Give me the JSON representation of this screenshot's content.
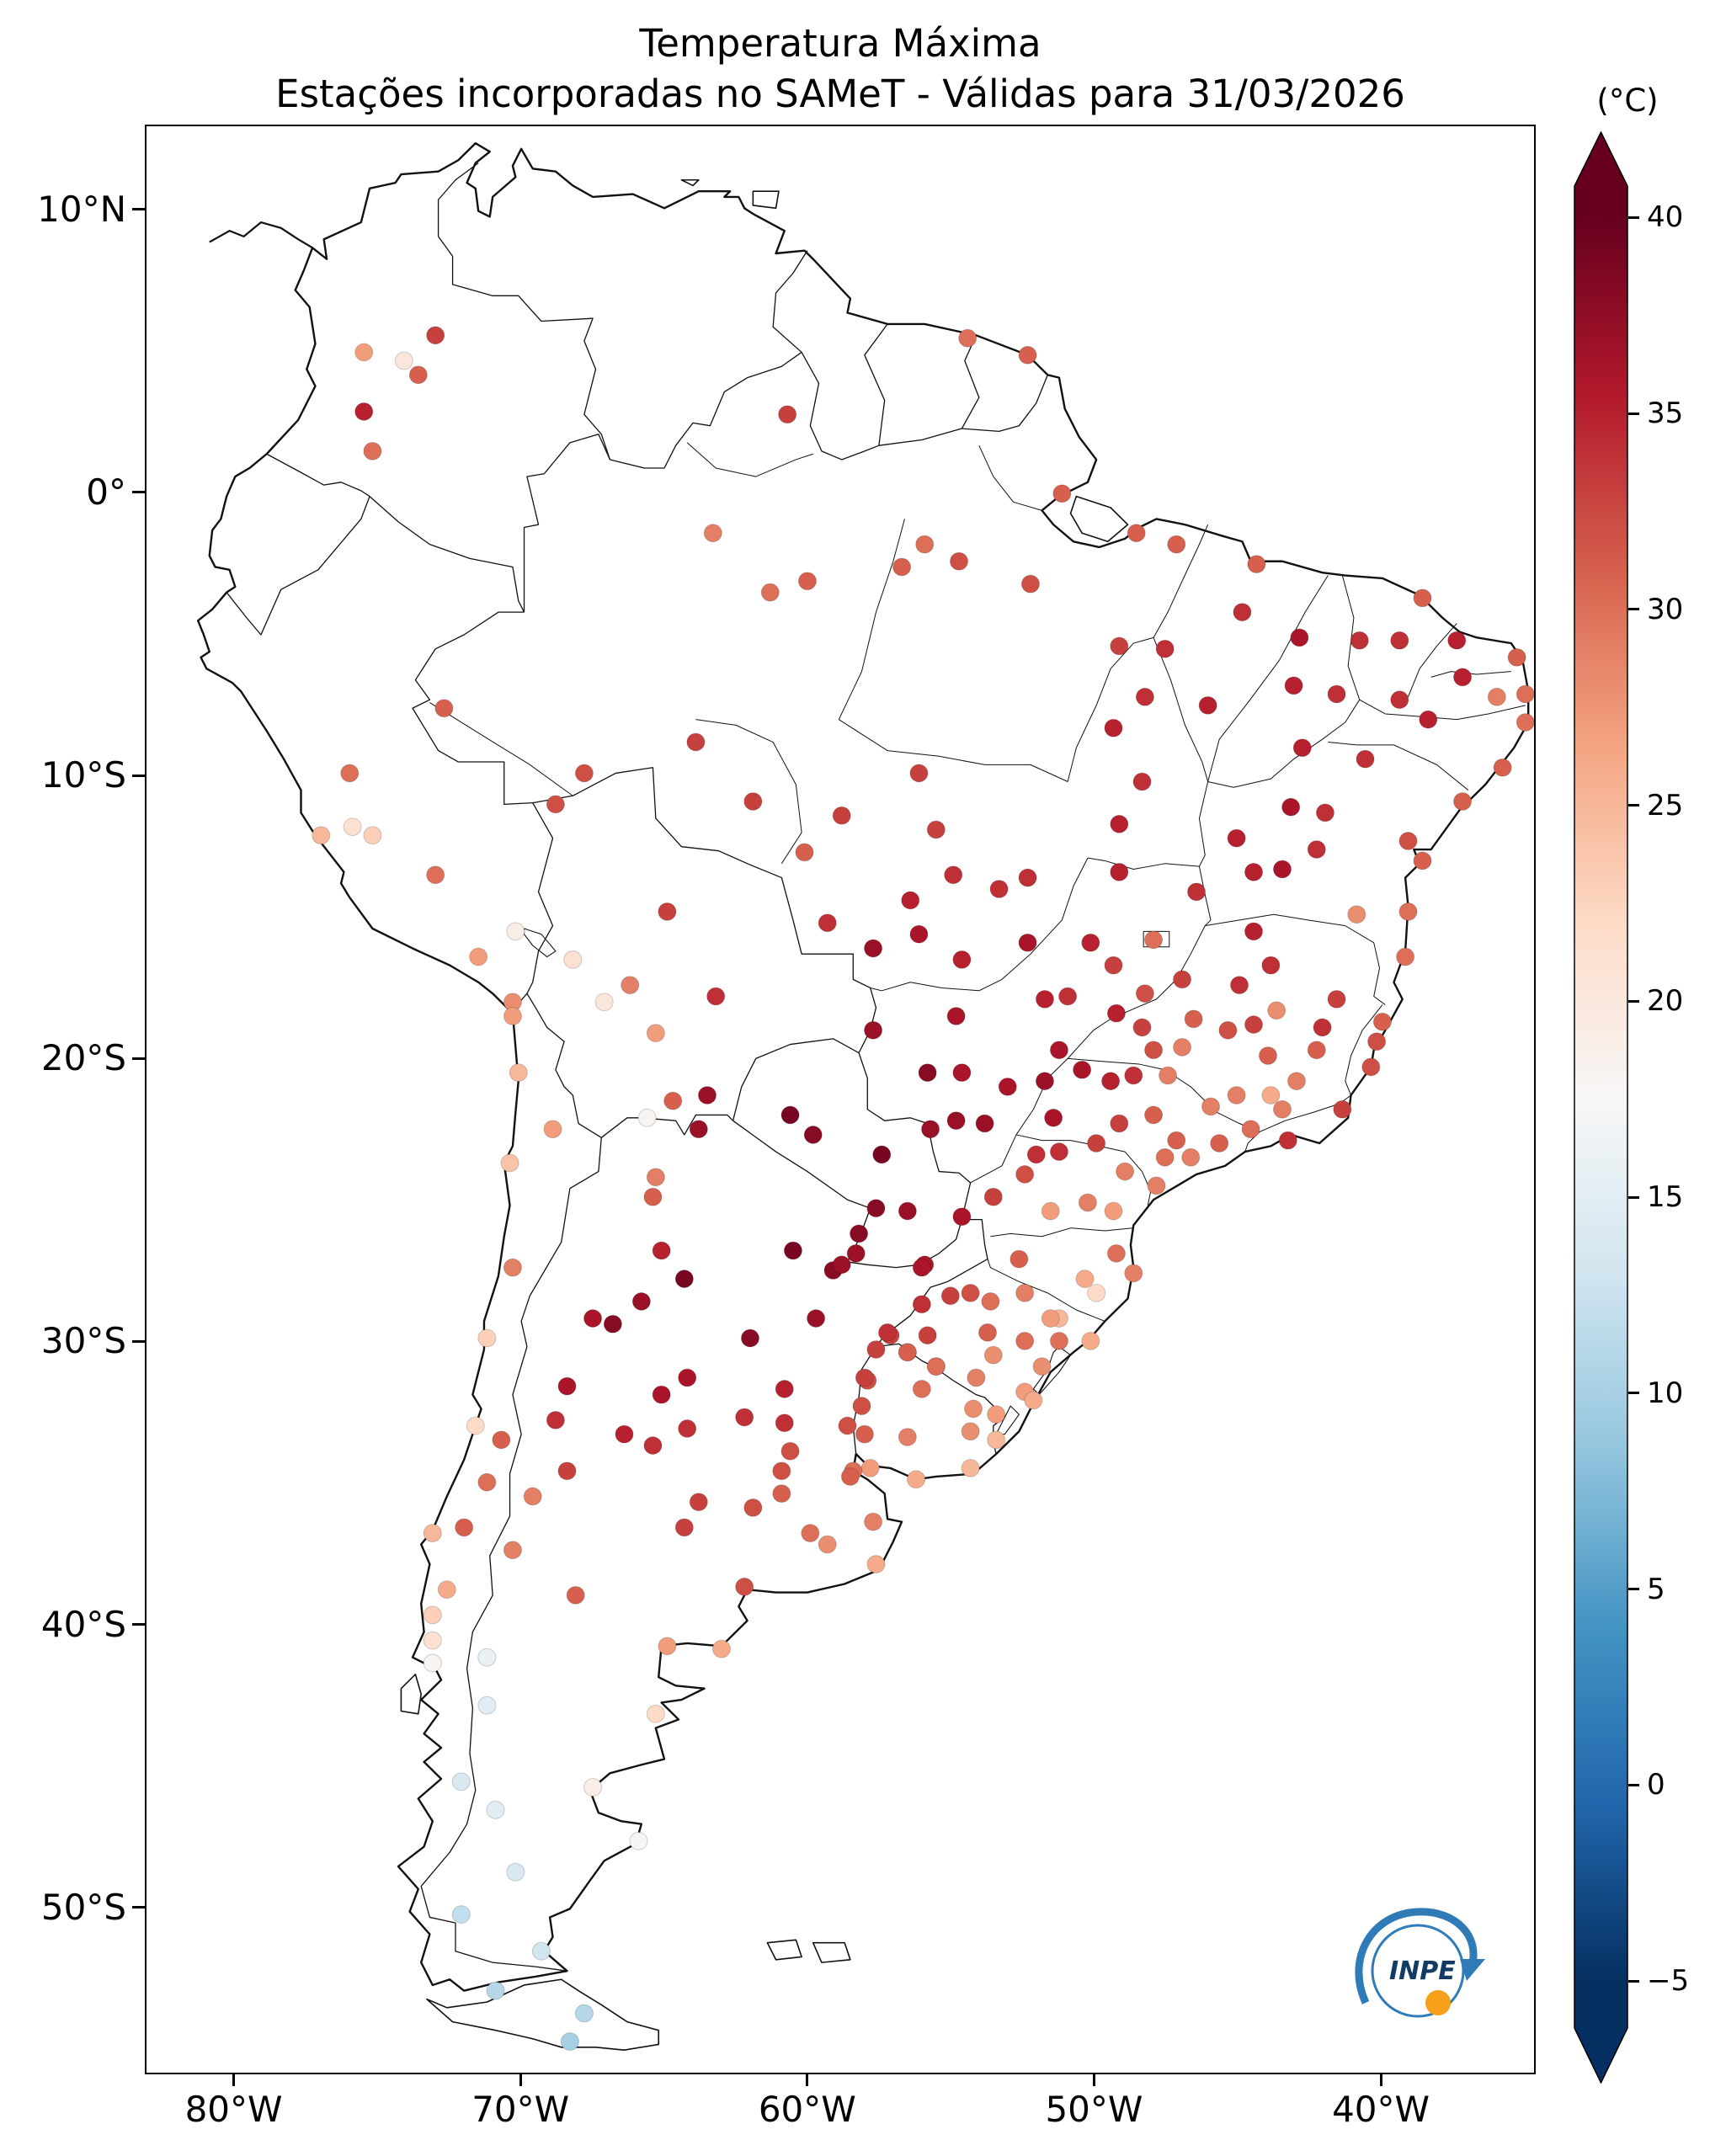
{
  "title": {
    "line1": "Temperatura Máxima",
    "line2": "Estações incorporadas no SAMeT - Válidas para 31/03/2026"
  },
  "colorbar": {
    "unit_label": "(°C)",
    "tick_labels": [
      "40",
      "35",
      "30",
      "25",
      "20",
      "15",
      "10",
      "5",
      "0",
      "−5"
    ],
    "tick_values": [
      40,
      35,
      30,
      25,
      20,
      15,
      10,
      5,
      0,
      -5
    ],
    "vmin": -5,
    "vmax": 40,
    "colormap": "RdBu_r",
    "extend": "both",
    "anchors": [
      "#053061",
      "#2166ac",
      "#4393c3",
      "#92c5de",
      "#d1e5f0",
      "#f7f7f7",
      "#fddbc7",
      "#f4a582",
      "#d6604d",
      "#b2182b",
      "#67001f"
    ]
  },
  "axes": {
    "x_tick_labels": [
      "80°W",
      "70°W",
      "60°W",
      "50°W",
      "40°W"
    ],
    "x_tick_values": [
      -80,
      -70,
      -60,
      -50,
      -40
    ],
    "y_tick_labels": [
      "10°N",
      "0°",
      "10°S",
      "20°S",
      "30°S",
      "40°S",
      "50°S"
    ],
    "y_tick_values": [
      10,
      0,
      -10,
      -20,
      -30,
      -40,
      -50
    ],
    "lon_range": [
      -83.1,
      -34.6
    ],
    "lat_range": [
      -55.9,
      13.0
    ]
  },
  "logo": {
    "text": "INPE"
  },
  "chart_data": {
    "type": "scatter",
    "subtype": "geographic-station-map",
    "region": "South America",
    "title": "Temperatura Máxima",
    "subtitle": "Estações incorporadas no SAMeT - Válidas para 31/03/2026",
    "units": "°C",
    "colorbar_label": "(°C)",
    "value_range": [
      -5,
      40
    ],
    "colormap": "RdBu_r",
    "points_format": [
      "lon",
      "lat",
      "tmax_c"
    ],
    "points": [
      [
        -75.5,
        5.0,
        27
      ],
      [
        -74.1,
        4.7,
        20
      ],
      [
        -73.6,
        4.2,
        31
      ],
      [
        -73.0,
        5.6,
        33
      ],
      [
        -75.5,
        2.9,
        35
      ],
      [
        -75.2,
        1.5,
        30
      ],
      [
        -52.3,
        4.9,
        31
      ],
      [
        -54.4,
        5.5,
        30
      ],
      [
        -60.7,
        2.8,
        33
      ],
      [
        -63.3,
        -1.4,
        29
      ],
      [
        -60.0,
        -3.1,
        31
      ],
      [
        -61.3,
        -3.5,
        30
      ],
      [
        -56.7,
        -2.6,
        31
      ],
      [
        -54.7,
        -2.4,
        32
      ],
      [
        -52.2,
        -3.2,
        32
      ],
      [
        -48.5,
        -1.4,
        31
      ],
      [
        -47.1,
        -1.8,
        31
      ],
      [
        -51.1,
        0.0,
        31
      ],
      [
        -55.9,
        -1.8,
        30
      ],
      [
        -67.8,
        -9.9,
        32
      ],
      [
        -72.7,
        -7.6,
        31
      ],
      [
        -63.9,
        -8.8,
        33
      ],
      [
        -61.9,
        -10.9,
        33
      ],
      [
        -60.1,
        -12.7,
        31
      ],
      [
        -44.3,
        -2.5,
        31
      ],
      [
        -44.8,
        -4.2,
        34
      ],
      [
        -47.5,
        -5.5,
        34
      ],
      [
        -46.0,
        -7.5,
        35
      ],
      [
        -42.8,
        -5.1,
        36
      ],
      [
        -43.0,
        -6.8,
        35
      ],
      [
        -41.5,
        -7.1,
        34
      ],
      [
        -42.7,
        -9.0,
        35
      ],
      [
        -40.7,
        -5.2,
        34
      ],
      [
        -48.2,
        -7.2,
        34
      ],
      [
        -48.3,
        -10.2,
        34
      ],
      [
        -49.1,
        -11.7,
        35
      ],
      [
        -49.1,
        -5.4,
        33
      ],
      [
        -49.3,
        -8.3,
        35
      ],
      [
        -38.5,
        -3.7,
        31
      ],
      [
        -39.3,
        -5.2,
        34
      ],
      [
        -37.3,
        -5.2,
        35
      ],
      [
        -35.2,
        -5.8,
        31
      ],
      [
        -37.1,
        -6.5,
        35
      ],
      [
        -34.9,
        -7.1,
        30
      ],
      [
        -35.9,
        -7.2,
        29
      ],
      [
        -34.9,
        -8.1,
        30
      ],
      [
        -40.5,
        -9.4,
        34
      ],
      [
        -35.7,
        -9.7,
        31
      ],
      [
        -37.1,
        -10.9,
        31
      ],
      [
        -38.3,
        -8.0,
        35
      ],
      [
        -39.3,
        -7.3,
        34
      ],
      [
        -38.5,
        -13.0,
        31
      ],
      [
        -41.9,
        -11.3,
        34
      ],
      [
        -43.1,
        -11.1,
        36
      ],
      [
        -45.0,
        -12.2,
        35
      ],
      [
        -43.4,
        -13.3,
        36
      ],
      [
        -44.4,
        -13.4,
        35
      ],
      [
        -40.8,
        -14.9,
        28
      ],
      [
        -39.0,
        -14.8,
        30
      ],
      [
        -39.1,
        -16.4,
        30
      ],
      [
        -39.0,
        -12.3,
        32
      ],
      [
        -42.2,
        -12.6,
        34
      ],
      [
        -56.1,
        -15.6,
        36
      ],
      [
        -57.7,
        -16.1,
        37
      ],
      [
        -54.6,
        -16.5,
        35
      ],
      [
        -56.4,
        -14.4,
        35
      ],
      [
        -55.5,
        -11.9,
        33
      ],
      [
        -56.1,
        -9.9,
        33
      ],
      [
        -58.8,
        -11.4,
        33
      ],
      [
        -52.3,
        -13.6,
        34
      ],
      [
        -52.3,
        -15.9,
        36
      ],
      [
        -53.3,
        -14.0,
        34
      ],
      [
        -54.9,
        -13.5,
        34
      ],
      [
        -59.3,
        -15.2,
        34
      ],
      [
        -49.3,
        -16.7,
        33
      ],
      [
        -47.9,
        -15.8,
        30
      ],
      [
        -48.2,
        -17.7,
        32
      ],
      [
        -49.1,
        -13.4,
        35
      ],
      [
        -50.9,
        -17.8,
        34
      ],
      [
        -51.7,
        -17.9,
        35
      ],
      [
        -49.2,
        -18.4,
        35
      ],
      [
        -46.4,
        -14.1,
        34
      ],
      [
        -50.1,
        -15.9,
        35
      ],
      [
        -43.9,
        -19.9,
        31
      ],
      [
        -44.4,
        -18.8,
        33
      ],
      [
        -43.8,
        -16.7,
        34
      ],
      [
        -44.9,
        -17.4,
        34
      ],
      [
        -44.4,
        -15.5,
        35
      ],
      [
        -46.9,
        -17.2,
        33
      ],
      [
        -46.5,
        -18.6,
        31
      ],
      [
        -48.3,
        -18.9,
        33
      ],
      [
        -47.9,
        -19.7,
        32
      ],
      [
        -46.9,
        -19.6,
        29
      ],
      [
        -45.3,
        -19.0,
        32
      ],
      [
        -42.9,
        -20.8,
        29
      ],
      [
        -43.4,
        -21.8,
        29
      ],
      [
        -43.8,
        -21.3,
        26
      ],
      [
        -45.0,
        -21.3,
        29
      ],
      [
        -45.9,
        -21.7,
        29
      ],
      [
        -41.5,
        -17.9,
        33
      ],
      [
        -42.0,
        -18.9,
        34
      ],
      [
        -42.2,
        -19.7,
        31
      ],
      [
        -43.6,
        -18.3,
        28
      ],
      [
        -40.3,
        -20.3,
        32
      ],
      [
        -40.1,
        -19.4,
        32
      ],
      [
        -39.9,
        -18.7,
        31
      ],
      [
        -43.2,
        -22.9,
        34
      ],
      [
        -41.3,
        -21.8,
        33
      ],
      [
        -44.5,
        -22.5,
        30
      ],
      [
        -46.6,
        -23.5,
        29
      ],
      [
        -47.1,
        -22.9,
        31
      ],
      [
        -45.6,
        -23.0,
        31
      ],
      [
        -47.5,
        -23.5,
        30
      ],
      [
        -47.9,
        -22.0,
        31
      ],
      [
        -47.4,
        -20.6,
        29
      ],
      [
        -48.6,
        -20.6,
        34
      ],
      [
        -49.4,
        -20.8,
        35
      ],
      [
        -50.4,
        -20.4,
        36
      ],
      [
        -51.4,
        -22.1,
        36
      ],
      [
        -49.1,
        -22.3,
        33
      ],
      [
        -49.9,
        -23.0,
        33
      ],
      [
        -48.9,
        -24.0,
        29
      ],
      [
        -47.8,
        -24.5,
        29
      ],
      [
        -49.3,
        -25.4,
        27
      ],
      [
        -50.2,
        -25.1,
        29
      ],
      [
        -51.5,
        -25.4,
        27
      ],
      [
        -51.2,
        -23.3,
        34
      ],
      [
        -52.0,
        -23.4,
        34
      ],
      [
        -52.4,
        -24.1,
        32
      ],
      [
        -53.5,
        -24.9,
        33
      ],
      [
        -54.6,
        -25.6,
        36
      ],
      [
        -48.6,
        -27.6,
        29
      ],
      [
        -52.6,
        -27.1,
        31
      ],
      [
        -50.3,
        -27.8,
        26
      ],
      [
        -49.2,
        -26.9,
        30
      ],
      [
        -49.9,
        -28.3,
        22
      ],
      [
        -51.2,
        -30.0,
        30
      ],
      [
        -51.2,
        -29.2,
        25
      ],
      [
        -51.5,
        -29.2,
        27
      ],
      [
        -52.4,
        -28.3,
        29
      ],
      [
        -53.6,
        -28.6,
        30
      ],
      [
        -54.3,
        -28.3,
        32
      ],
      [
        -55.0,
        -28.4,
        33
      ],
      [
        -56.0,
        -28.7,
        34
      ],
      [
        -55.8,
        -29.8,
        33
      ],
      [
        -57.1,
        -29.8,
        33
      ],
      [
        -53.7,
        -29.7,
        31
      ],
      [
        -52.4,
        -30.0,
        30
      ],
      [
        -50.1,
        -30.0,
        26
      ],
      [
        -51.8,
        -30.9,
        28
      ],
      [
        -55.5,
        -30.9,
        30
      ],
      [
        -56.5,
        -30.4,
        31
      ],
      [
        -54.1,
        -31.3,
        29
      ],
      [
        -52.4,
        -31.8,
        27
      ],
      [
        -52.1,
        -32.1,
        26
      ],
      [
        -53.4,
        -32.6,
        27
      ],
      [
        -53.4,
        -33.5,
        25
      ],
      [
        -53.5,
        -30.5,
        28
      ],
      [
        -56.5,
        -30.4,
        31
      ],
      [
        -55.5,
        -30.9,
        30
      ],
      [
        -57.9,
        -31.4,
        32
      ],
      [
        -58.1,
        -32.3,
        32
      ],
      [
        -56.0,
        -31.7,
        30
      ],
      [
        -54.2,
        -32.4,
        28
      ],
      [
        -54.3,
        -33.2,
        28
      ],
      [
        -56.5,
        -33.4,
        29
      ],
      [
        -58.0,
        -33.3,
        31
      ],
      [
        -56.2,
        -34.9,
        26
      ],
      [
        -54.3,
        -34.5,
        25
      ],
      [
        -57.8,
        -34.5,
        27
      ],
      [
        -57.6,
        -25.3,
        38
      ],
      [
        -57.4,
        -23.4,
        39
      ],
      [
        -60.6,
        -22.0,
        39
      ],
      [
        -59.8,
        -22.7,
        38
      ],
      [
        -56.5,
        -25.4,
        37
      ],
      [
        -55.9,
        -27.3,
        36
      ],
      [
        -58.3,
        -26.9,
        37
      ],
      [
        -54.6,
        -20.5,
        36
      ],
      [
        -54.8,
        -22.2,
        37
      ],
      [
        -55.7,
        -22.5,
        37
      ],
      [
        -51.7,
        -20.8,
        37
      ],
      [
        -57.7,
        -19.0,
        37
      ],
      [
        -55.8,
        -20.5,
        38
      ],
      [
        -54.8,
        -18.5,
        36
      ],
      [
        -51.2,
        -19.7,
        36
      ],
      [
        -53.8,
        -22.3,
        37
      ],
      [
        -53.0,
        -21.0,
        36
      ],
      [
        -63.2,
        -17.8,
        34
      ],
      [
        -66.2,
        -17.4,
        29
      ],
      [
        -68.2,
        -16.5,
        21
      ],
      [
        -64.9,
        -14.8,
        33
      ],
      [
        -68.8,
        -11.0,
        32
      ],
      [
        -65.3,
        -19.1,
        27
      ],
      [
        -64.7,
        -21.5,
        31
      ],
      [
        -63.5,
        -21.3,
        37
      ],
      [
        -67.1,
        -18.0,
        20
      ],
      [
        -77.0,
        -12.1,
        25
      ],
      [
        -75.9,
        -11.8,
        21
      ],
      [
        -75.2,
        -12.1,
        23
      ],
      [
        -73.0,
        -13.5,
        30
      ],
      [
        -71.5,
        -16.4,
        27
      ],
      [
        -70.2,
        -15.5,
        19
      ],
      [
        -70.3,
        -18.0,
        28
      ],
      [
        -76.0,
        -9.9,
        30
      ],
      [
        -70.3,
        -18.5,
        27
      ],
      [
        -70.1,
        -20.5,
        25
      ],
      [
        -68.9,
        -22.5,
        27
      ],
      [
        -70.4,
        -23.7,
        24
      ],
      [
        -70.3,
        -27.4,
        29
      ],
      [
        -71.2,
        -29.9,
        23
      ],
      [
        -70.7,
        -33.5,
        31
      ],
      [
        -71.6,
        -33.0,
        22
      ],
      [
        -71.2,
        -35.0,
        30
      ],
      [
        -72.0,
        -36.6,
        31
      ],
      [
        -73.1,
        -36.8,
        25
      ],
      [
        -72.6,
        -38.8,
        26
      ],
      [
        -73.1,
        -39.7,
        23
      ],
      [
        -73.1,
        -40.6,
        21
      ],
      [
        -73.1,
        -41.4,
        18
      ],
      [
        -72.1,
        -45.6,
        14
      ],
      [
        -70.9,
        -53.0,
        11
      ],
      [
        -65.4,
        -24.9,
        31
      ],
      [
        -65.3,
        -24.2,
        29
      ],
      [
        -63.8,
        -22.5,
        37
      ],
      [
        -65.6,
        -22.1,
        18
      ],
      [
        -58.2,
        -26.2,
        38
      ],
      [
        -59.1,
        -27.5,
        38
      ],
      [
        -58.8,
        -27.3,
        37
      ],
      [
        -56.0,
        -27.4,
        36
      ],
      [
        -60.5,
        -26.8,
        39
      ],
      [
        -62.0,
        -29.9,
        38
      ],
      [
        -59.7,
        -29.2,
        37
      ],
      [
        -64.3,
        -27.8,
        39
      ],
      [
        -65.1,
        -26.8,
        35
      ],
      [
        -65.8,
        -28.6,
        37
      ],
      [
        -66.8,
        -29.4,
        38
      ],
      [
        -67.5,
        -29.2,
        36
      ],
      [
        -68.4,
        -31.6,
        36
      ],
      [
        -68.8,
        -32.8,
        34
      ],
      [
        -68.4,
        -34.6,
        33
      ],
      [
        -69.6,
        -35.5,
        29
      ],
      [
        -66.4,
        -33.3,
        35
      ],
      [
        -65.4,
        -33.7,
        34
      ],
      [
        -64.2,
        -33.1,
        34
      ],
      [
        -64.2,
        -31.3,
        36
      ],
      [
        -65.1,
        -31.9,
        36
      ],
      [
        -62.2,
        -32.7,
        34
      ],
      [
        -60.8,
        -32.9,
        34
      ],
      [
        -60.8,
        -31.7,
        35
      ],
      [
        -58.0,
        -31.3,
        33
      ],
      [
        -57.6,
        -30.3,
        33
      ],
      [
        -57.2,
        -29.7,
        34
      ],
      [
        -58.6,
        -33.0,
        32
      ],
      [
        -60.6,
        -33.9,
        32
      ],
      [
        -60.9,
        -34.6,
        32
      ],
      [
        -58.4,
        -34.6,
        30
      ],
      [
        -58.5,
        -34.8,
        31
      ],
      [
        -60.9,
        -35.4,
        31
      ],
      [
        -61.9,
        -35.9,
        32
      ],
      [
        -59.9,
        -36.8,
        30
      ],
      [
        -57.7,
        -36.4,
        29
      ],
      [
        -59.3,
        -37.2,
        28
      ],
      [
        -57.6,
        -37.9,
        26
      ],
      [
        -62.2,
        -38.7,
        32
      ],
      [
        -64.3,
        -36.6,
        33
      ],
      [
        -63.8,
        -35.7,
        33
      ],
      [
        -68.1,
        -39.0,
        31
      ],
      [
        -70.3,
        -37.4,
        29
      ],
      [
        -63.0,
        -40.9,
        26
      ],
      [
        -64.9,
        -40.8,
        27
      ],
      [
        -71.2,
        -41.2,
        16
      ],
      [
        -71.2,
        -42.9,
        15
      ],
      [
        -65.3,
        -43.2,
        22
      ],
      [
        -67.5,
        -45.8,
        19
      ],
      [
        -70.9,
        -46.6,
        15
      ],
      [
        -65.9,
        -47.7,
        17
      ],
      [
        -70.2,
        -48.8,
        14
      ],
      [
        -69.3,
        -51.6,
        13
      ],
      [
        -72.1,
        -50.3,
        12
      ],
      [
        -67.8,
        -53.8,
        11
      ],
      [
        -68.3,
        -54.8,
        10
      ]
    ]
  }
}
